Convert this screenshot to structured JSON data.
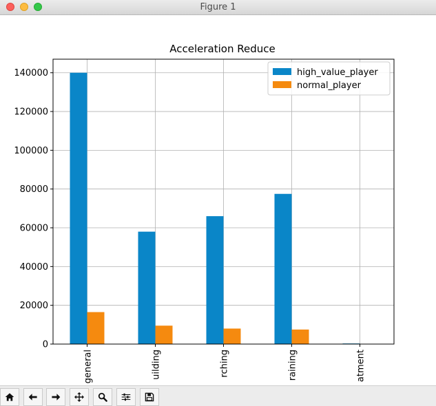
{
  "window": {
    "title": "Figure 1"
  },
  "toolbar": {
    "tools": [
      "home-icon",
      "back-arrow-icon",
      "forward-arrow-icon",
      "pan-icon",
      "zoom-icon",
      "subplots-icon",
      "save-icon"
    ]
  },
  "colors": {
    "high_value_player": "#0a86c8",
    "normal_player": "#f58a0f"
  },
  "chart_data": {
    "type": "bar",
    "title": "Acceleration Reduce",
    "categories": [
      "general",
      "building",
      "researching",
      "training",
      "treatment"
    ],
    "visible_tick_labels": [
      "general",
      "uilding",
      "rching",
      "raining",
      "atment"
    ],
    "series": [
      {
        "name": "high_value_player",
        "values": [
          140000,
          58000,
          66000,
          77500,
          300
        ]
      },
      {
        "name": "normal_player",
        "values": [
          16500,
          9500,
          8000,
          7500,
          0
        ]
      }
    ],
    "ylim": [
      0,
      147000
    ],
    "yticks": [
      "0",
      "20000",
      "40000",
      "60000",
      "80000",
      "100000",
      "120000",
      "140000"
    ],
    "ytick_values": [
      0,
      20000,
      40000,
      60000,
      80000,
      100000,
      120000,
      140000
    ],
    "grid": true,
    "legend": "top-right"
  }
}
